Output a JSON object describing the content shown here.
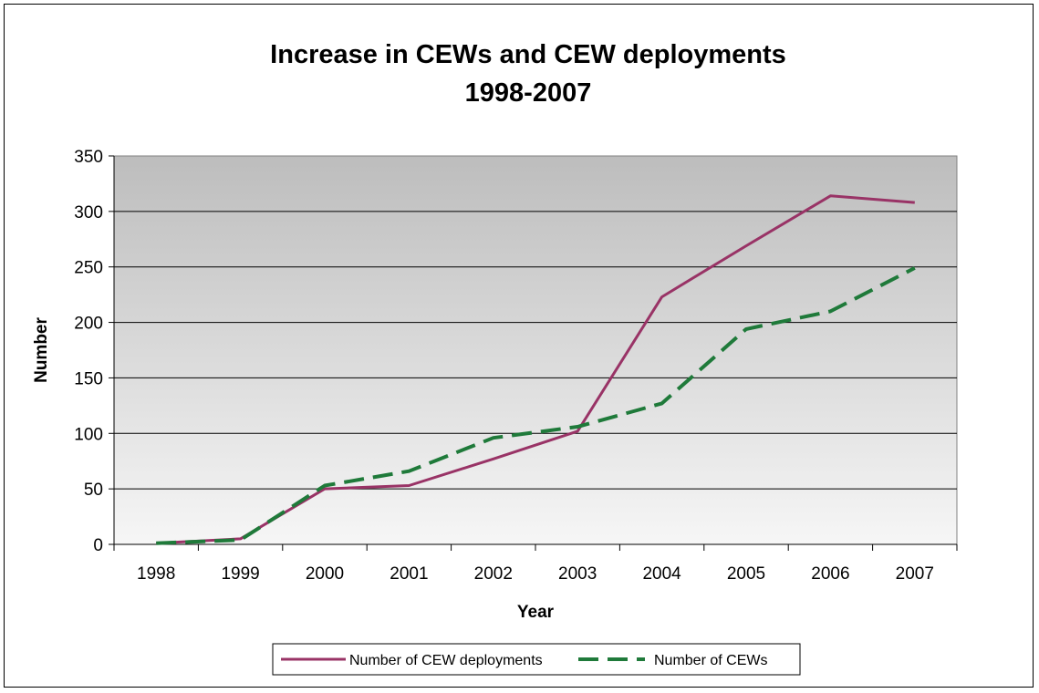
{
  "chart_data": {
    "type": "line",
    "title": "Increase in CEWs and CEW deployments",
    "subtitle": "1998-2007",
    "xlabel": "Year",
    "ylabel": "Number",
    "categories": [
      "1998",
      "1999",
      "2000",
      "2001",
      "2002",
      "2003",
      "2004",
      "2005",
      "2006",
      "2007"
    ],
    "ylim": [
      0,
      350
    ],
    "yticks": [
      0,
      50,
      100,
      150,
      200,
      250,
      300,
      350
    ],
    "grid": true,
    "legend_position": "bottom",
    "series": [
      {
        "name": "Number of CEW deployments",
        "color": "#993366",
        "style": "solid",
        "values": [
          1,
          5,
          50,
          53,
          77,
          102,
          223,
          269,
          314,
          308
        ]
      },
      {
        "name": "Number of CEWs",
        "color": "#1f7a3a",
        "style": "dashed",
        "values": [
          1,
          4,
          53,
          66,
          96,
          106,
          127,
          194,
          210,
          249
        ]
      }
    ]
  }
}
